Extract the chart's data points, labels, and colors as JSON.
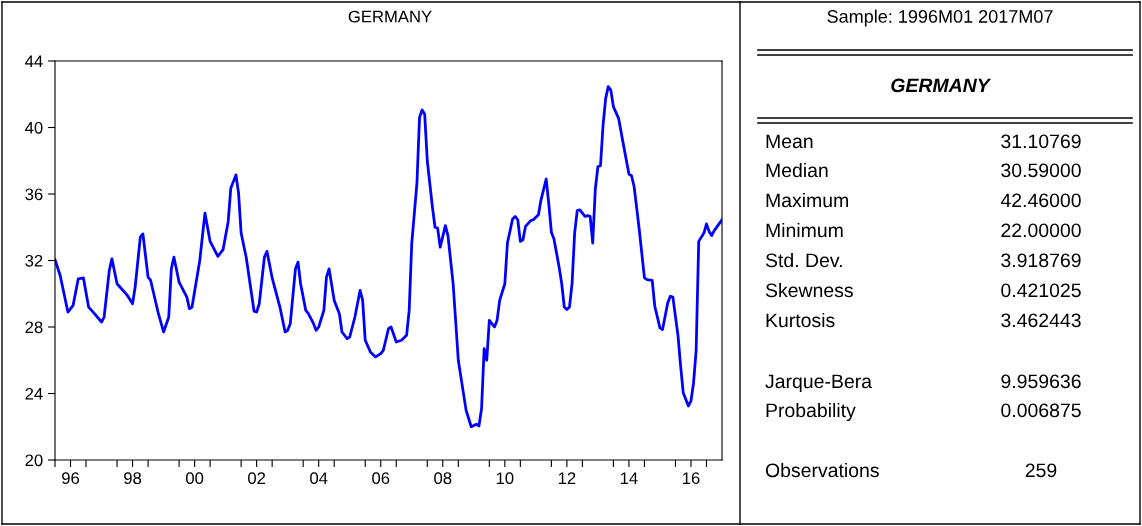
{
  "chart_data": [
    {
      "type": "line",
      "title": "GERMANY",
      "series": [
        {
          "color": "#0000ff",
          "x": [
            "1996-01",
            "1996-03",
            "1996-06",
            "1996-08",
            "1996-10",
            "1996-12",
            "1997-02",
            "1997-04",
            "1997-07",
            "1997-08",
            "1997-10",
            "1997-11",
            "1998-01",
            "1998-05",
            "1998-07",
            "1998-08",
            "1998-10",
            "1998-11",
            "1999-01",
            "1999-02",
            "1999-05",
            "1999-07",
            "1999-09",
            "1999-10",
            "1999-11",
            "2000-01",
            "2000-04",
            "2000-05",
            "2000-06",
            "2000-09",
            "2000-11",
            "2001-01",
            "2001-04",
            "2001-06",
            "2001-08",
            "2001-09",
            "2001-11",
            "2001-12",
            "2002-01",
            "2002-03",
            "2002-06",
            "2002-07",
            "2002-08",
            "2002-10",
            "2002-11",
            "2003-01",
            "2003-04",
            "2003-06",
            "2003-07",
            "2003-08",
            "2003-10",
            "2003-11",
            "2003-12",
            "2004-02",
            "2004-03",
            "2004-05",
            "2004-06",
            "2004-07",
            "2004-09",
            "2004-10",
            "2004-11",
            "2005-01",
            "2005-03",
            "2005-04",
            "2005-06",
            "2005-07",
            "2005-09",
            "2005-11",
            "2005-12",
            "2006-01",
            "2006-03",
            "2006-05",
            "2006-07",
            "2006-08",
            "2006-10",
            "2006-11",
            "2007-01",
            "2007-03",
            "2007-05",
            "2007-06",
            "2007-07",
            "2007-09",
            "2007-10",
            "2007-11",
            "2007-12",
            "2008-01",
            "2008-03",
            "2008-04",
            "2008-05",
            "2008-06",
            "2008-08",
            "2008-09",
            "2008-11",
            "2009-01",
            "2009-02",
            "2009-04",
            "2009-06",
            "2009-08",
            "2009-09",
            "2009-10",
            "2009-11",
            "2009-12",
            "2010-01",
            "2010-03",
            "2010-04",
            "2010-05",
            "2010-07",
            "2010-08",
            "2010-10",
            "2010-11",
            "2010-12",
            "2011-01",
            "2011-02",
            "2011-03",
            "2011-05",
            "2011-06",
            "2011-08",
            "2011-09",
            "2011-11",
            "2011-12",
            "2012-01",
            "2012-02",
            "2012-04",
            "2012-05",
            "2012-06",
            "2012-07",
            "2012-08",
            "2012-09",
            "2012-10",
            "2012-11",
            "2012-12",
            "2013-02",
            "2013-03",
            "2013-04",
            "2013-05",
            "2013-06",
            "2013-07",
            "2013-08",
            "2013-09",
            "2013-10",
            "2013-11",
            "2013-12",
            "2014-01",
            "2014-03",
            "2014-05",
            "2014-07",
            "2014-08",
            "2014-09",
            "2014-11",
            "2015-01",
            "2015-02",
            "2015-04",
            "2015-05",
            "2015-07",
            "2015-08",
            "2015-10",
            "2015-11",
            "2015-12",
            "2016-02",
            "2016-03",
            "2016-04",
            "2016-06",
            "2016-07",
            "2016-08",
            "2016-09",
            "2016-10",
            "2016-12",
            "2017-01",
            "2017-02",
            "2017-03",
            "2017-04",
            "2017-07"
          ],
          "values": [
            32.05,
            31.1,
            28.9,
            29.3,
            30.9,
            30.95,
            29.2,
            28.85,
            28.3,
            28.6,
            31.4,
            32.1,
            30.6,
            29.9,
            29.4,
            30.4,
            33.4,
            33.6,
            31.0,
            30.8,
            28.8,
            27.7,
            28.6,
            31.5,
            32.2,
            30.7,
            29.8,
            29.1,
            29.2,
            32.0,
            34.85,
            33.15,
            32.25,
            32.65,
            34.35,
            36.35,
            37.15,
            36.05,
            33.65,
            32.15,
            28.95,
            28.9,
            29.4,
            32.2,
            32.55,
            30.95,
            29.2,
            27.7,
            27.8,
            28.2,
            31.5,
            31.9,
            30.6,
            29.0,
            28.8,
            28.2,
            27.8,
            28.0,
            29.0,
            31.0,
            31.5,
            29.6,
            28.8,
            27.7,
            27.3,
            27.4,
            28.6,
            30.2,
            29.6,
            27.2,
            26.5,
            26.2,
            26.4,
            26.6,
            27.9,
            28.0,
            27.1,
            27.2,
            27.5,
            29.0,
            33.05,
            36.65,
            40.6,
            41.05,
            40.8,
            38.0,
            35.2,
            34.0,
            33.95,
            32.8,
            34.1,
            33.5,
            30.6,
            26.0,
            25.0,
            23.0,
            22.0,
            22.15,
            22.05,
            23.1,
            26.7,
            26.0,
            28.4,
            28.0,
            28.4,
            29.6,
            30.6,
            33.05,
            34.5,
            34.65,
            34.45,
            33.15,
            33.25,
            34.05,
            34.4,
            34.45,
            34.75,
            35.65,
            36.9,
            35.4,
            33.7,
            33.3,
            31.6,
            30.6,
            29.2,
            29.05,
            29.2,
            30.6,
            33.65,
            35.0,
            35.05,
            34.65,
            34.7,
            34.65,
            33.05,
            36.3,
            37.65,
            37.7,
            40.15,
            41.75,
            42.46,
            42.25,
            41.25,
            40.55,
            38.85,
            37.2,
            37.1,
            36.45,
            33.85,
            30.95,
            30.85,
            30.8,
            29.25,
            27.95,
            27.85,
            29.45,
            29.85,
            29.8,
            27.45,
            25.65,
            24.05,
            23.25,
            23.55,
            24.65,
            26.6,
            33.15,
            33.65,
            34.2,
            33.75,
            33.5,
            33.8,
            34.45
          ]
        }
      ],
      "xlim": [
        "1996-01",
        "2017-07"
      ],
      "xticks": [
        {
          "value": "1996",
          "label": null
        },
        {
          "value": "1996-07",
          "label": "96"
        },
        {
          "value": "1997",
          "label": null
        },
        {
          "value": "1998",
          "label": null
        },
        {
          "value": "1998-07",
          "label": "98"
        },
        {
          "value": "1999",
          "label": null
        },
        {
          "value": "2000",
          "label": null
        },
        {
          "value": "2000-07",
          "label": "00"
        },
        {
          "value": "2001",
          "label": null
        },
        {
          "value": "2002",
          "label": null
        },
        {
          "value": "2002-07",
          "label": "02"
        },
        {
          "value": "2003",
          "label": null
        },
        {
          "value": "2004",
          "label": null
        },
        {
          "value": "2004-07",
          "label": "04"
        },
        {
          "value": "2005",
          "label": null
        },
        {
          "value": "2006",
          "label": null
        },
        {
          "value": "2006-07",
          "label": "06"
        },
        {
          "value": "2007",
          "label": null
        },
        {
          "value": "2008",
          "label": null
        },
        {
          "value": "2008-07",
          "label": "08"
        },
        {
          "value": "2009",
          "label": null
        },
        {
          "value": "2010",
          "label": null
        },
        {
          "value": "2010-07",
          "label": "10"
        },
        {
          "value": "2011",
          "label": null
        },
        {
          "value": "2012",
          "label": null
        },
        {
          "value": "2012-07",
          "label": "12"
        },
        {
          "value": "2013",
          "label": null
        },
        {
          "value": "2014",
          "label": null
        },
        {
          "value": "2014-07",
          "label": "14"
        },
        {
          "value": "2015",
          "label": null
        },
        {
          "value": "2016",
          "label": null
        },
        {
          "value": "2016-07",
          "label": "16"
        },
        {
          "value": "2017",
          "label": null
        }
      ],
      "ylim": [
        20,
        44
      ],
      "yticks": [
        20,
        24,
        28,
        32,
        36,
        40,
        44
      ],
      "grid": false,
      "marker": "none",
      "line_style": "solid"
    },
    {
      "type": "other",
      "title": "Sample: 1996M01 2017M07",
      "subtitle": "GERMANY",
      "categories": [
        "Mean",
        "Median",
        "Maximum",
        "Minimum",
        "Std. Dev.",
        "Skewness",
        "Kurtosis",
        "Jarque-Bera",
        "Probability",
        "Observations"
      ],
      "value_labels": [
        "31.10769",
        "30.59000",
        "42.46000",
        "22.00000",
        "3.918769",
        "0.421025",
        "3.462443",
        "9.959636",
        "0.006875",
        "259"
      ]
    }
  ]
}
